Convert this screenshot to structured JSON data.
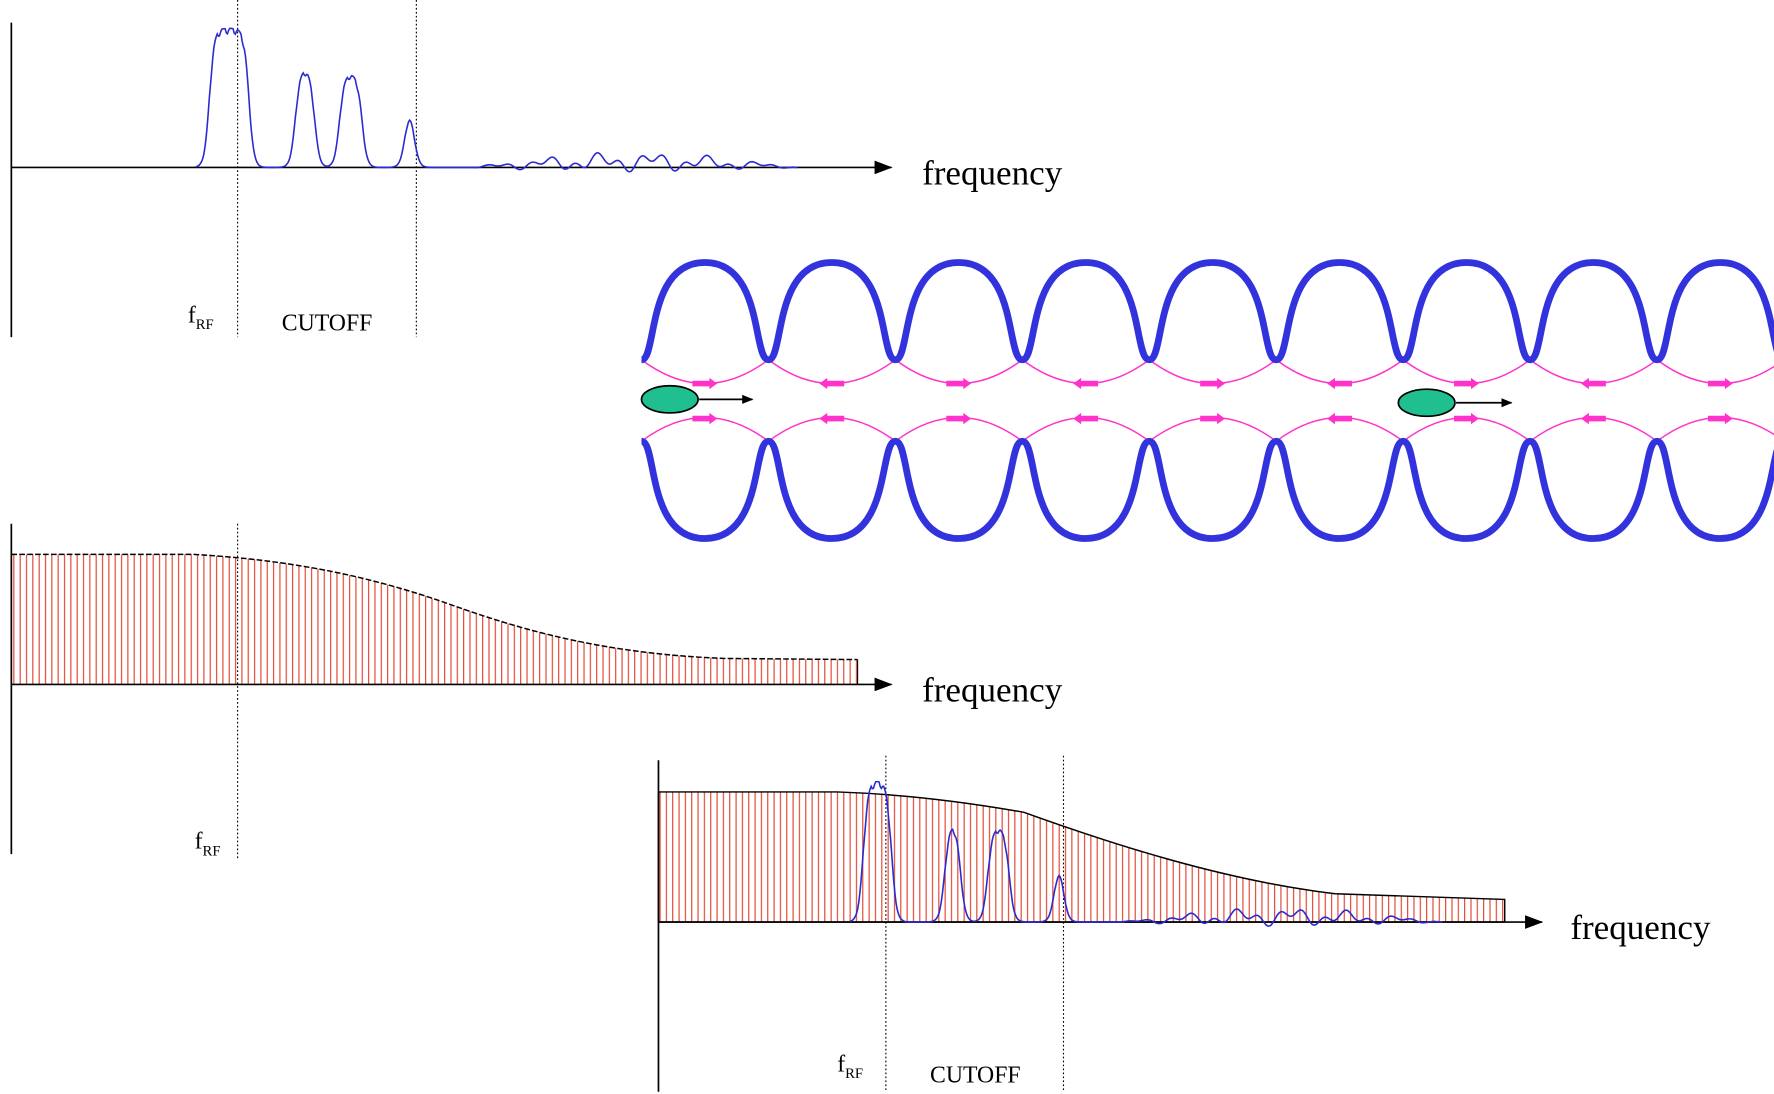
{
  "spectrum_panel": {
    "axis_label": "frequency",
    "rf_marker": {
      "main": "f",
      "sub": "RF"
    },
    "cutoff_marker": "CUTOFF"
  },
  "impedance_panel": {
    "axis_label": "frequency",
    "rf_marker": {
      "main": "f",
      "sub": "RF"
    }
  },
  "combined_panel": {
    "axis_label": "frequency",
    "rf_marker": {
      "main": "f",
      "sub": "RF"
    },
    "cutoff_marker": "CUTOFF"
  }
}
